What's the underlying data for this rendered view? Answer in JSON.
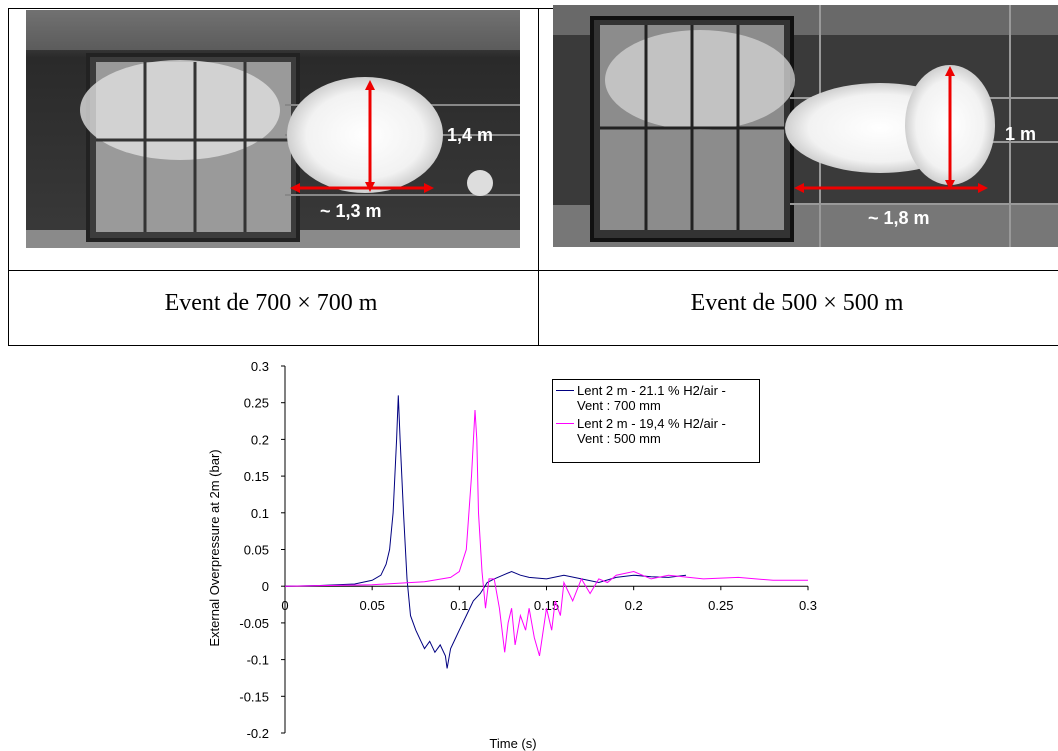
{
  "figures": [
    {
      "labels": {
        "height": "1,4 m",
        "width": "~ 1,3 m"
      },
      "caption": "Event de 700 × 700 m"
    },
    {
      "labels": {
        "height": "1 m",
        "width": "~ 1,8 m"
      },
      "caption": "Event de 500 × 500 m"
    }
  ],
  "chart_data": {
    "type": "line",
    "xlabel": "Time (s)",
    "ylabel": "External Overpressure at 2m (bar)",
    "xlim": [
      0,
      0.3
    ],
    "ylim": [
      -0.2,
      0.3
    ],
    "xticks": [
      0,
      0.05,
      0.1,
      0.15,
      0.2,
      0.25,
      0.3
    ],
    "yticks": [
      -0.2,
      -0.15,
      -0.1,
      -0.05,
      0,
      0.05,
      0.1,
      0.15,
      0.2,
      0.25,
      0.3
    ],
    "grid": false,
    "legend": "upper right",
    "series": [
      {
        "name": "Lent 2 m - 21.1 % H2/air - Vent : 700 mm",
        "color": "#000080",
        "x": [
          0,
          0.02,
          0.04,
          0.05,
          0.055,
          0.058,
          0.06,
          0.062,
          0.064,
          0.065,
          0.066,
          0.068,
          0.07,
          0.072,
          0.075,
          0.078,
          0.08,
          0.083,
          0.086,
          0.089,
          0.092,
          0.093,
          0.095,
          0.098,
          0.1,
          0.104,
          0.108,
          0.112,
          0.116,
          0.12,
          0.125,
          0.13,
          0.135,
          0.14,
          0.15,
          0.16,
          0.17,
          0.18,
          0.19,
          0.2,
          0.21,
          0.22,
          0.23
        ],
        "values": [
          0,
          0.001,
          0.003,
          0.008,
          0.015,
          0.03,
          0.05,
          0.1,
          0.2,
          0.26,
          0.2,
          0.1,
          0.01,
          -0.04,
          -0.06,
          -0.075,
          -0.085,
          -0.075,
          -0.09,
          -0.08,
          -0.095,
          -0.112,
          -0.085,
          -0.07,
          -0.06,
          -0.04,
          -0.02,
          -0.01,
          0.005,
          0.01,
          0.015,
          0.02,
          0.015,
          0.012,
          0.01,
          0.015,
          0.01,
          0.005,
          0.012,
          0.015,
          0.013,
          0.012,
          0.015
        ]
      },
      {
        "name": "Lent 2 m - 19,4 % H2/air - Vent : 500 mm",
        "color": "#FF00FF",
        "x": [
          0,
          0.05,
          0.08,
          0.095,
          0.1,
          0.104,
          0.107,
          0.109,
          0.11,
          0.111,
          0.113,
          0.115,
          0.117,
          0.12,
          0.123,
          0.126,
          0.128,
          0.13,
          0.132,
          0.135,
          0.138,
          0.14,
          0.143,
          0.146,
          0.15,
          0.153,
          0.155,
          0.158,
          0.16,
          0.165,
          0.17,
          0.175,
          0.18,
          0.185,
          0.19,
          0.2,
          0.21,
          0.22,
          0.24,
          0.26,
          0.28,
          0.3
        ],
        "values": [
          0,
          0.002,
          0.006,
          0.012,
          0.02,
          0.05,
          0.15,
          0.24,
          0.2,
          0.1,
          0.02,
          -0.03,
          0.01,
          0.01,
          -0.03,
          -0.09,
          -0.05,
          -0.03,
          -0.08,
          -0.04,
          -0.06,
          -0.03,
          -0.07,
          -0.095,
          -0.03,
          -0.06,
          -0.02,
          -0.04,
          0.005,
          -0.02,
          0.01,
          -0.01,
          0.01,
          0.005,
          0.015,
          0.02,
          0.01,
          0.015,
          0.01,
          0.012,
          0.008,
          0.008
        ]
      }
    ]
  }
}
